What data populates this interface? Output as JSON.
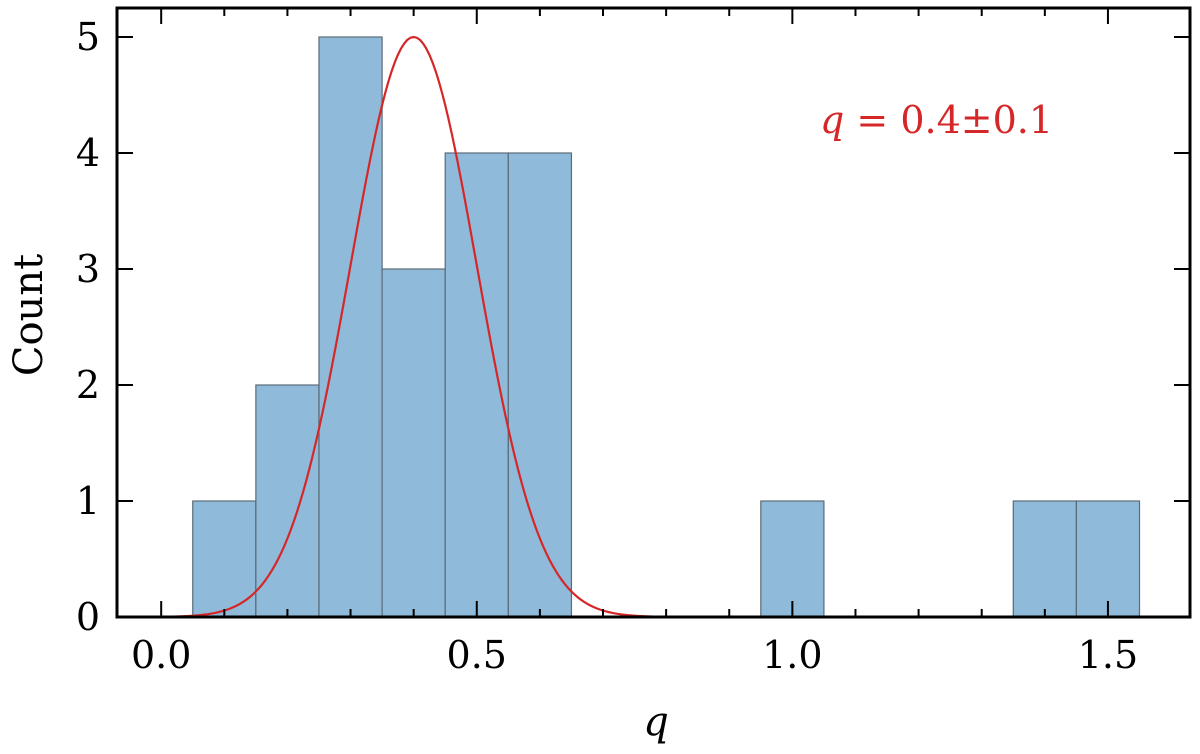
{
  "chart_data": {
    "type": "bar",
    "bin_edges": [
      0.05,
      0.15,
      0.25,
      0.35,
      0.45,
      0.55,
      0.65,
      0.75,
      0.85,
      0.95,
      1.05,
      1.15,
      1.25,
      1.35,
      1.45,
      1.55
    ],
    "counts": [
      1,
      2,
      5,
      3,
      4,
      4,
      0,
      0,
      0,
      1,
      0,
      0,
      0,
      1,
      1
    ],
    "fit_curve": {
      "type": "gaussian",
      "mean": 0.4,
      "sigma": 0.1,
      "amplitude": 5,
      "x_range": [
        0.0,
        1.0
      ]
    },
    "xlabel": "q",
    "ylabel": "Count",
    "xlim": [
      -0.07,
      1.63
    ],
    "ylim": [
      0,
      5.25
    ],
    "xticks": [
      "0.0",
      "0.5",
      "1.0",
      "1.5"
    ],
    "xtick_values": [
      0.0,
      0.5,
      1.0,
      1.5
    ],
    "yticks": [
      "0",
      "1",
      "2",
      "3",
      "4",
      "5"
    ],
    "ytick_values": [
      0,
      1,
      2,
      3,
      4,
      5
    ],
    "annotation": {
      "var": "q",
      "text": " = 0.4±0.1"
    },
    "colors": {
      "bar_fill": "#90bad9",
      "bar_edge": "#5a6b78",
      "curve": "#d62728",
      "annotation": "#d62728"
    },
    "grid": false
  }
}
